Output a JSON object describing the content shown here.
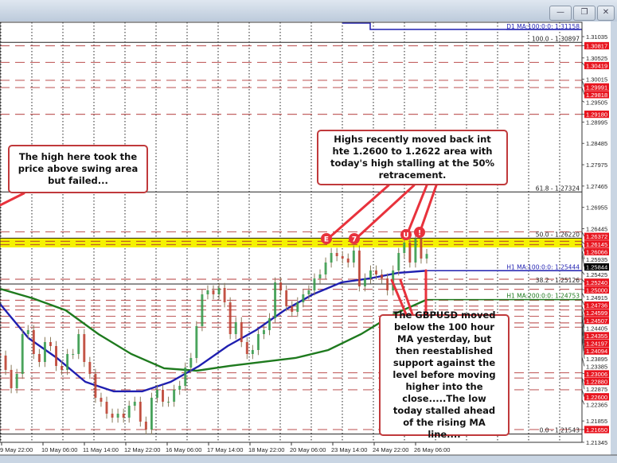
{
  "window": {
    "buttons": [
      {
        "name": "minimize",
        "glyph": "—"
      },
      {
        "name": "restore",
        "glyph": "❐"
      },
      {
        "name": "close",
        "glyph": "✕"
      }
    ]
  },
  "annotations": {
    "left_note": "The high here took the price above swing area but failed...",
    "top_note": "Highs recently moved back int hte 1.2600 to 1.2622 area with today's high stalling at the 50% retracement.",
    "bottom_note": "The GBPUSD moved below the 100 hour MA yesterday, but then reestablished support against the level  before moving higher into the close.....The low today stalled ahead of the rising MA line....",
    "markers": [
      "E",
      "7",
      "U",
      "!"
    ]
  },
  "colors": {
    "bull": "#2e9e4a",
    "bear": "#c0392b",
    "ma100": "#1f1fb0",
    "ma200": "#1e7a1e",
    "level": "#b03030",
    "band": "#f5f200",
    "tag": "#e8141e",
    "note_border": "#c0393b"
  },
  "chart_data": {
    "type": "candlestick",
    "symbol": "GBPUSD",
    "timeframe": "H1",
    "ylim": [
      1.2125,
      1.3135
    ],
    "y_ticks": [
      "1.31035",
      "1.30525",
      "1.30015",
      "1.29505",
      "1.28995",
      "1.28485",
      "1.27975",
      "1.27465",
      "1.26955",
      "1.26445",
      "1.25935",
      "1.25425",
      "1.24915",
      "1.24405",
      "1.23895",
      "1.23385",
      "1.22875",
      "1.22365",
      "1.21855",
      "1.21345"
    ],
    "x_ticks": [
      "9 May 22:00",
      "10 May 06:00",
      "11 May 14:00",
      "12 May 22:00",
      "16 May 06:00",
      "17 May 14:00",
      "18 May 22:00",
      "20 May 06:00",
      "23 May 14:00",
      "24 May 22:00",
      "26 May 06:00"
    ],
    "grid": true,
    "closes": [
      1.23416,
      1.23074,
      1.22637,
      1.22979,
      1.23929,
      1.24024,
      1.23454,
      1.23264,
      1.23739,
      1.23644,
      1.23169,
      1.23074,
      1.23454,
      1.23454,
      1.23929,
      1.23264,
      1.22979,
      1.22409,
      1.22314,
      1.22029,
      1.21934,
      1.22029,
      1.21934,
      1.22219,
      1.22314,
      1.21839,
      1.21649,
      1.22409,
      1.22599,
      1.22314,
      1.22314,
      1.22599,
      1.22694,
      1.23131,
      1.23359,
      1.24119,
      1.24879,
      1.24974,
      1.24879,
      1.25031,
      1.24689,
      1.23929,
      1.24214,
      1.23739,
      1.23454,
      1.23549,
      1.23929,
      1.24024,
      1.24309,
      1.25164,
      1.24974,
      1.24594,
      1.24461,
      1.24689,
      1.24879,
      1.24974,
      1.25259,
      1.25354,
      1.25639,
      1.25867,
      1.25791,
      1.25734,
      1.25639,
      1.25924,
      1.25069,
      1.25259,
      1.25449,
      1.25354,
      1.25259,
      1.24974,
      1.25449,
      1.25867,
      1.26114,
      1.25639,
      1.26209,
      1.25734,
      1.25844
    ],
    "current_price": "1.25844",
    "ma100": {
      "label": "H1 MA:100:0:0: 1.25444",
      "values": [
        1.24651,
        1.23834,
        1.23359,
        1.22789,
        1.22561,
        1.22561,
        1.22789,
        1.23169,
        1.23644,
        1.24024,
        1.24499,
        1.24879,
        1.25164,
        1.25259,
        1.25392,
        1.25444
      ]
    },
    "ma200": {
      "label": "H1 MA:200:0:0: 1.24753",
      "values": [
        1.25012,
        1.24784,
        1.24499,
        1.23929,
        1.23454,
        1.23112,
        1.23055,
        1.23169,
        1.23264,
        1.23359,
        1.23549,
        1.23929,
        1.24404,
        1.24753
      ]
    },
    "d1_ma": {
      "label": "D1 MA:100:0:0: 1.31158",
      "value": 1.31158
    },
    "fib_levels": [
      {
        "label": "100.0 - 1.30897",
        "value": 1.30897
      },
      {
        "label": "61.8 - 1.27324",
        "value": 1.27324
      },
      {
        "label": "50.0 - 1.26220",
        "value": 1.2622
      },
      {
        "label": "38.2 - 1.25126",
        "value": 1.25126
      },
      {
        "label": "0.0 - 1.21543",
        "value": 1.21543
      }
    ],
    "zone": [
      1.26,
      1.2622
    ],
    "levels": [
      "1.30817",
      "1.30419",
      "1.29991",
      "1.29818",
      "1.29180",
      "1.26372",
      "1.26145",
      "1.26066",
      "1.25240",
      "1.25000",
      "1.24736",
      "1.24599",
      "1.24507",
      "1.24355",
      "1.24197",
      "1.24094",
      "1.23006",
      "1.22880",
      "1.22600",
      "1.21650"
    ]
  }
}
